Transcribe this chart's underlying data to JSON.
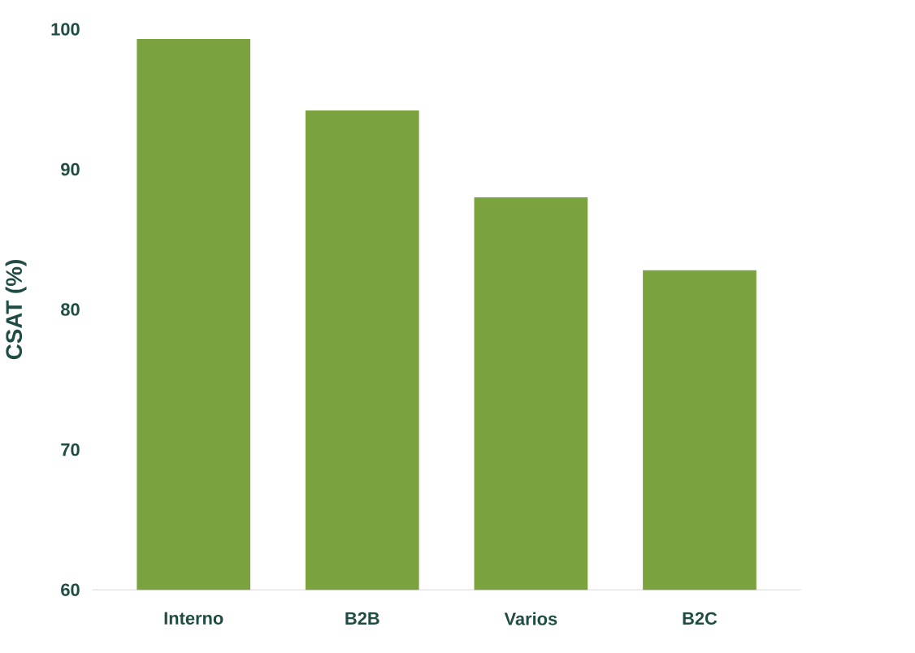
{
  "chart_data": {
    "type": "bar",
    "ylabel": "CSAT (%)",
    "categories": [
      "Interno",
      "B2B",
      "Varios",
      "B2C"
    ],
    "values": [
      99.3,
      94.2,
      88.0,
      82.8
    ],
    "color": "#7aa33f",
    "ylim": [
      60,
      100
    ],
    "yticks": [
      60,
      70,
      80,
      90,
      100
    ]
  }
}
